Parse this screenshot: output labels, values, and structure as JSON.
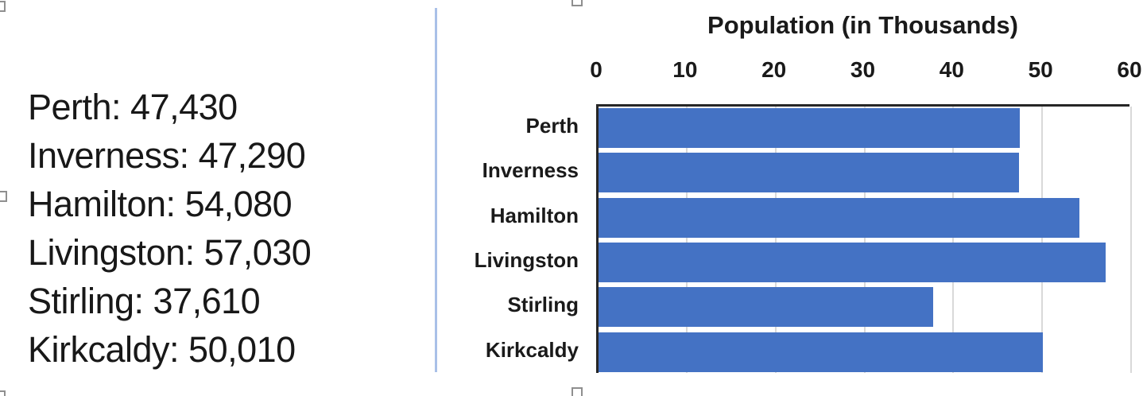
{
  "text_panel": {
    "lines": [
      "Perth: 47,430",
      "Inverness: 47,290",
      "Hamilton: 54,080",
      "Livingston: 57,030",
      "Stirling: 37,610",
      "Kirkcaldy: 50,010"
    ]
  },
  "chart_data": {
    "type": "bar",
    "orientation": "horizontal",
    "title": "Population (in Thousands)",
    "categories": [
      "Perth",
      "Inverness",
      "Hamilton",
      "Livingston",
      "Stirling",
      "Kirkcaldy"
    ],
    "values": [
      47.43,
      47.29,
      54.08,
      57.03,
      37.61,
      50.01
    ],
    "values_raw": [
      47430,
      47290,
      54080,
      57030,
      37610,
      50010
    ],
    "xlabel": "",
    "ylabel": "",
    "xlim": [
      0,
      60
    ],
    "x_ticks": [
      0,
      10,
      20,
      30,
      40,
      50,
      60
    ],
    "grid": true,
    "legend": false,
    "bar_color": "#4472C4",
    "gridline_color": "#D9D9D9",
    "axis_color": "#262626"
  },
  "editor": {
    "divider_color": "#A9C0E8",
    "selection_handles": [
      "top-left",
      "left-middle",
      "bottom-left",
      "top-center",
      "bottom-center"
    ]
  }
}
